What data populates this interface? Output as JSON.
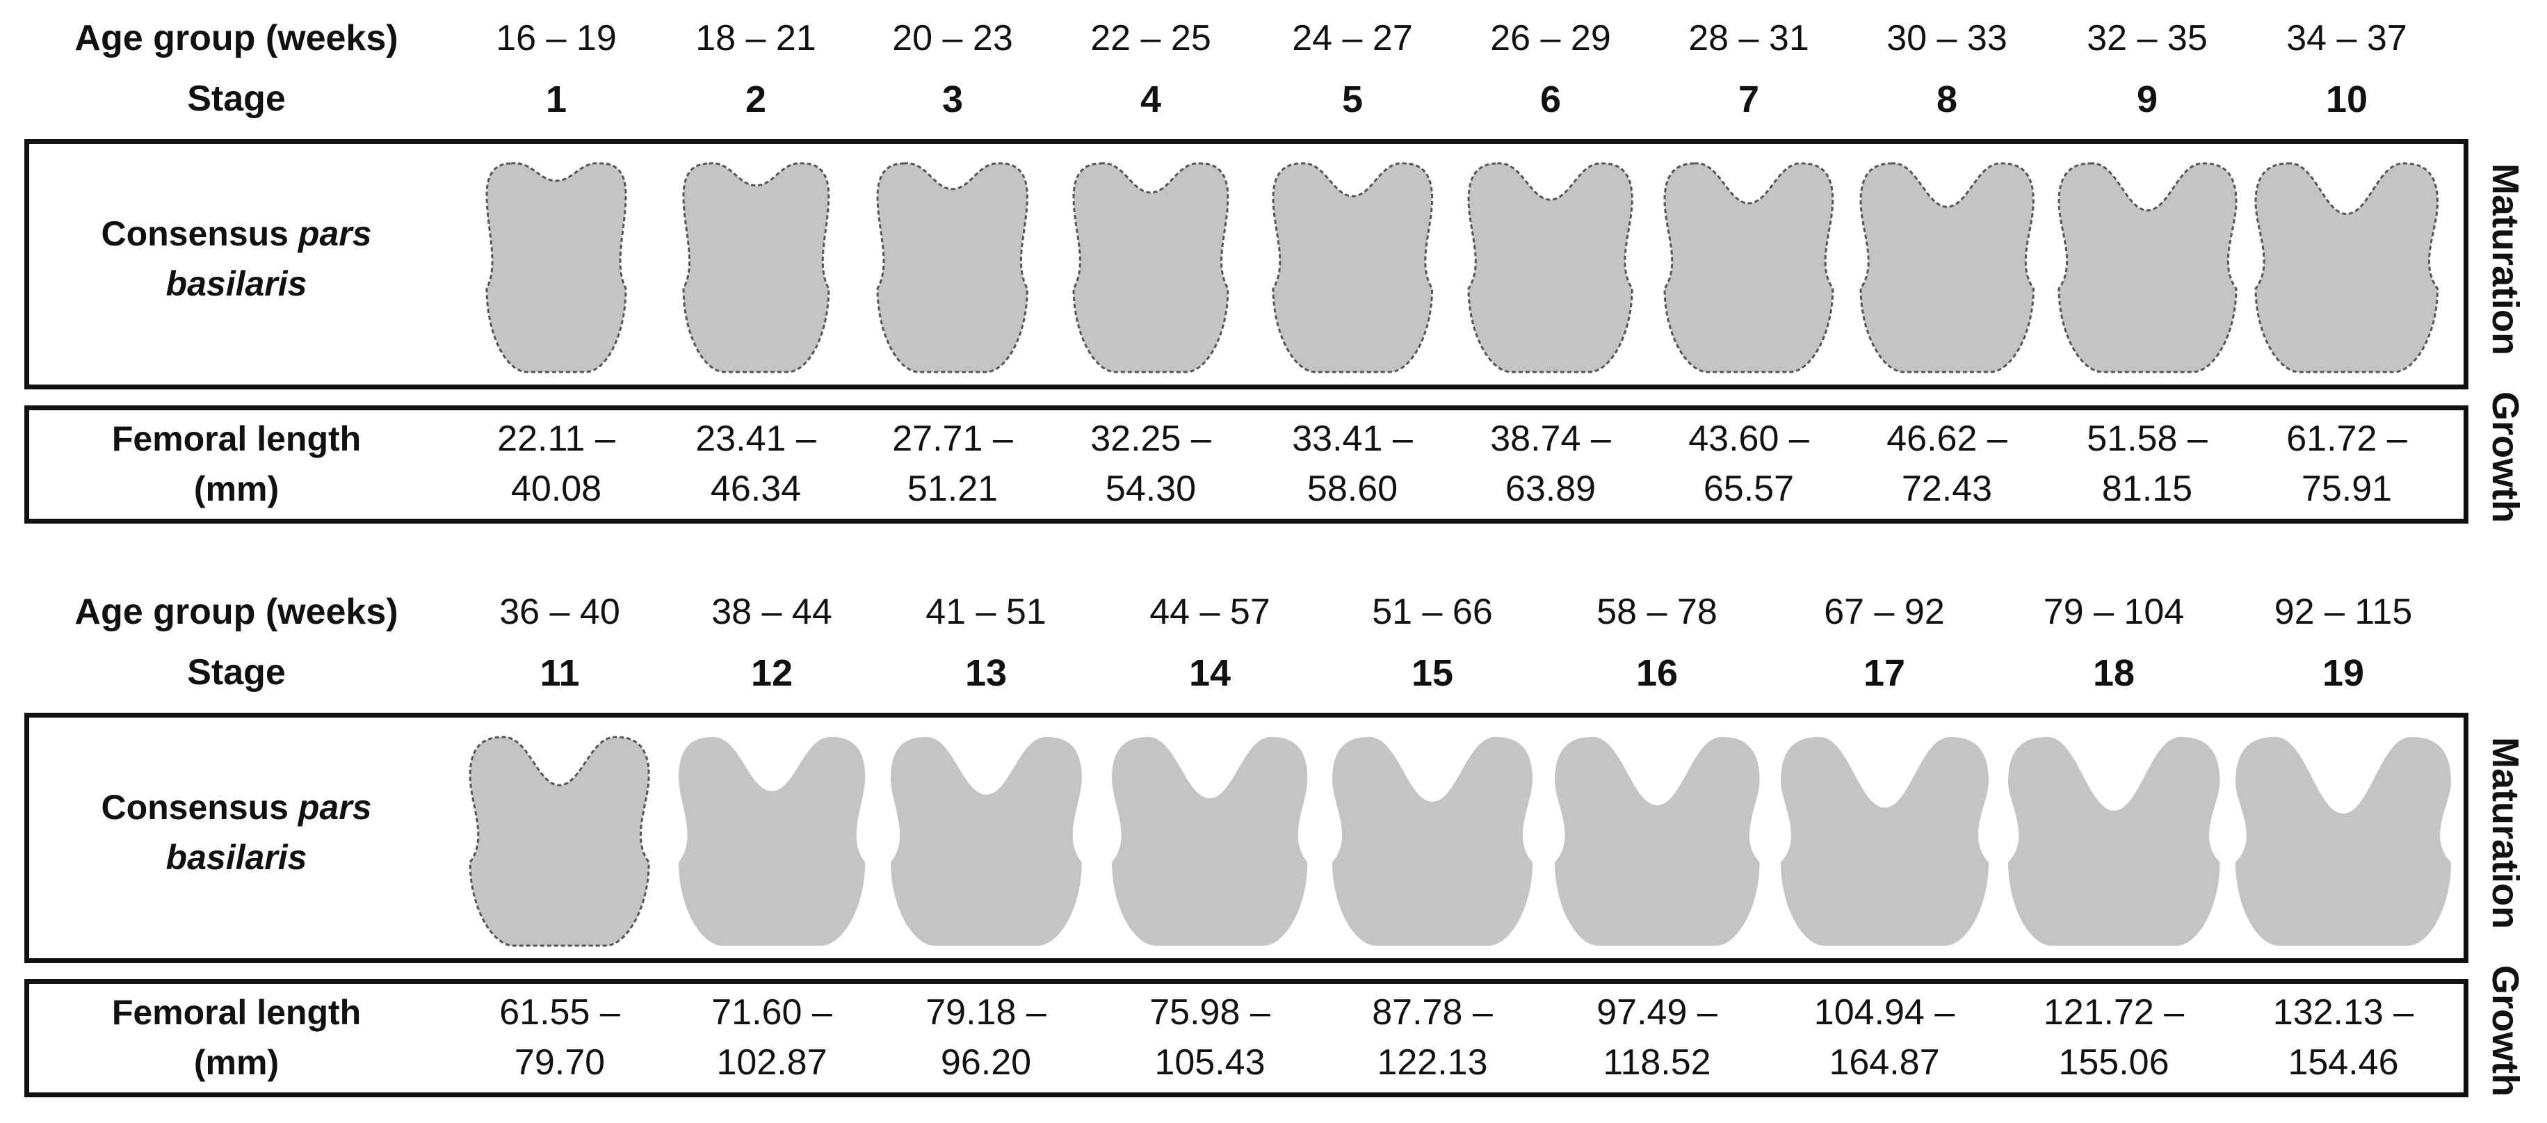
{
  "labels": {
    "age_group": "Age group (weeks)",
    "stage": "Stage",
    "consensus_prefix": "Consensus ",
    "consensus_italic_1": "pars",
    "consensus_italic_2": "basilaris",
    "femoral_line_1": "Femoral length",
    "femoral_line_2": "(mm)",
    "maturation": "Maturation",
    "growth": "Growth"
  },
  "colors": {
    "shape_fill": "#c4c4c4",
    "shape_outline": "#555555",
    "border": "#111111"
  },
  "panels": [
    {
      "stages": [
        {
          "stage": "1",
          "age": "16 – 19",
          "femur_1": "22.11 –",
          "femur_2": "40.08",
          "maturity": 0.0,
          "outlined": true
        },
        {
          "stage": "2",
          "age": "18 – 21",
          "femur_1": "23.41 –",
          "femur_2": "46.34",
          "maturity": 0.08,
          "outlined": true
        },
        {
          "stage": "3",
          "age": "20 – 23",
          "femur_1": "27.71 –",
          "femur_2": "51.21",
          "maturity": 0.14,
          "outlined": true
        },
        {
          "stage": "4",
          "age": "22 – 25",
          "femur_1": "32.25 –",
          "femur_2": "54.30",
          "maturity": 0.2,
          "outlined": true
        },
        {
          "stage": "5",
          "age": "24 – 27",
          "femur_1": "33.41 –",
          "femur_2": "58.60",
          "maturity": 0.26,
          "outlined": true
        },
        {
          "stage": "6",
          "age": "26 – 29",
          "femur_1": "38.74 –",
          "femur_2": "63.89",
          "maturity": 0.32,
          "outlined": true
        },
        {
          "stage": "7",
          "age": "28 – 31",
          "femur_1": "43.60 –",
          "femur_2": "65.57",
          "maturity": 0.38,
          "outlined": true
        },
        {
          "stage": "8",
          "age": "30 – 33",
          "femur_1": "46.62 –",
          "femur_2": "72.43",
          "maturity": 0.44,
          "outlined": true
        },
        {
          "stage": "9",
          "age": "32 – 35",
          "femur_1": "51.58 –",
          "femur_2": "81.15",
          "maturity": 0.5,
          "outlined": true
        },
        {
          "stage": "10",
          "age": "34 – 37",
          "femur_1": "61.72 –",
          "femur_2": "75.91",
          "maturity": 0.56,
          "outlined": true
        }
      ]
    },
    {
      "stages": [
        {
          "stage": "11",
          "age": "36 – 40",
          "femur_1": "61.55 –",
          "femur_2": "79.70",
          "maturity": 0.52,
          "outlined": true
        },
        {
          "stage": "12",
          "age": "38 – 44",
          "femur_1": "71.60 –",
          "femur_2": "102.87",
          "maturity": 0.62,
          "outlined": false
        },
        {
          "stage": "13",
          "age": "41 – 51",
          "femur_1": "79.18 –",
          "femur_2": "96.20",
          "maturity": 0.68,
          "outlined": false
        },
        {
          "stage": "14",
          "age": "44 – 57",
          "femur_1": "75.98 –",
          "femur_2": "105.43",
          "maturity": 0.74,
          "outlined": false
        },
        {
          "stage": "15",
          "age": "51 – 66",
          "femur_1": "87.78 –",
          "femur_2": "122.13",
          "maturity": 0.8,
          "outlined": false
        },
        {
          "stage": "16",
          "age": "58 – 78",
          "femur_1": "97.49 –",
          "femur_2": "118.52",
          "maturity": 0.86,
          "outlined": false
        },
        {
          "stage": "17",
          "age": "67 – 92",
          "femur_1": "104.94 –",
          "femur_2": "164.87",
          "maturity": 0.9,
          "outlined": false
        },
        {
          "stage": "18",
          "age": "79 – 104",
          "femur_1": "121.72 –",
          "femur_2": "155.06",
          "maturity": 0.95,
          "outlined": false
        },
        {
          "stage": "19",
          "age": "92 – 115",
          "femur_1": "132.13 –",
          "femur_2": "154.46",
          "maturity": 1.0,
          "outlined": false
        }
      ]
    }
  ]
}
